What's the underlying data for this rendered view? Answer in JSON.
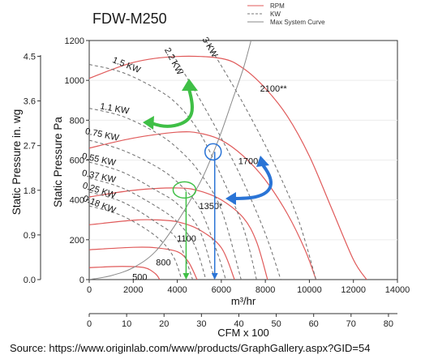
{
  "chart_data": {
    "type": "line",
    "title": "FDW-M250",
    "xlabel": "m³/hr",
    "xlabel_secondary": "CFM x 100",
    "ylabel": "Static Pressure Pa",
    "ylabel_secondary": "Static Pressure in. wg",
    "xlim": [
      0,
      14000
    ],
    "ylim": [
      0,
      1200
    ],
    "x_ticks": [
      "0",
      "2000",
      "4000",
      "6000",
      "8000",
      "10000",
      "12000",
      "14000"
    ],
    "y_ticks": [
      "0",
      "200",
      "400",
      "600",
      "800",
      "1000",
      "1200"
    ],
    "x2_ticks": [
      "0",
      "10",
      "20",
      "30",
      "40",
      "50",
      "60",
      "70",
      "80"
    ],
    "y2_ticks": [
      "0.0",
      "0.9",
      "1.8",
      "2.7",
      "3.6",
      "4.5"
    ],
    "legend": {
      "placement": "top-right",
      "entries": [
        {
          "label": "RPM",
          "color": "#e05a5a",
          "style": "solid"
        },
        {
          "label": "KW",
          "color": "#777777",
          "style": "dashed"
        },
        {
          "label": "Max System Curve",
          "color": "#888888",
          "style": "solid"
        }
      ]
    },
    "series": [
      {
        "name": "2100",
        "label": "2100**",
        "kind": "rpm",
        "points": [
          [
            0,
            1010
          ],
          [
            2000,
            1090
          ],
          [
            4000,
            1120
          ],
          [
            6000,
            1110
          ],
          [
            7000,
            1060
          ],
          [
            8000,
            960
          ],
          [
            9000,
            820
          ],
          [
            10000,
            620
          ],
          [
            11000,
            360
          ],
          [
            12000,
            100
          ],
          [
            12600,
            0
          ]
        ]
      },
      {
        "name": "1700",
        "label": "1700",
        "kind": "rpm",
        "points": [
          [
            0,
            660
          ],
          [
            2000,
            710
          ],
          [
            4000,
            740
          ],
          [
            5000,
            735
          ],
          [
            6000,
            700
          ],
          [
            7000,
            620
          ],
          [
            8000,
            500
          ],
          [
            9000,
            330
          ],
          [
            9800,
            150
          ],
          [
            10300,
            0
          ]
        ]
      },
      {
        "name": "1350",
        "label": "1350*",
        "kind": "rpm",
        "points": [
          [
            0,
            415
          ],
          [
            2000,
            448
          ],
          [
            4000,
            460
          ],
          [
            5000,
            445
          ],
          [
            6000,
            400
          ],
          [
            7000,
            310
          ],
          [
            7600,
            190
          ],
          [
            8100,
            0
          ]
        ]
      },
      {
        "name": "1100",
        "label": "1100",
        "kind": "rpm",
        "points": [
          [
            0,
            275
          ],
          [
            2000,
            298
          ],
          [
            3000,
            300
          ],
          [
            4000,
            290
          ],
          [
            5000,
            250
          ],
          [
            6000,
            160
          ],
          [
            6600,
            0
          ]
        ]
      },
      {
        "name": "800",
        "label": "800",
        "kind": "rpm",
        "points": [
          [
            0,
            150
          ],
          [
            2000,
            162
          ],
          [
            3000,
            160
          ],
          [
            4000,
            140
          ],
          [
            4500,
            90
          ],
          [
            4900,
            0
          ]
        ]
      },
      {
        "name": "500",
        "label": "500",
        "kind": "rpm",
        "points": [
          [
            0,
            60
          ],
          [
            1500,
            66
          ],
          [
            2500,
            60
          ],
          [
            3000,
            30
          ],
          [
            3200,
            0
          ]
        ]
      },
      {
        "name": "3 KW",
        "label": "3 KW",
        "kind": "kw",
        "points": [
          [
            5300,
            1200
          ],
          [
            6500,
            980
          ],
          [
            7500,
            780
          ],
          [
            8500,
            560
          ],
          [
            9500,
            300
          ],
          [
            10300,
            0
          ]
        ]
      },
      {
        "name": "2.2 KW",
        "label": "2.2 KW",
        "kind": "kw",
        "points": [
          [
            3800,
            1130
          ],
          [
            5000,
            910
          ],
          [
            6000,
            710
          ],
          [
            7000,
            490
          ],
          [
            8000,
            230
          ],
          [
            8700,
            0
          ]
        ]
      },
      {
        "name": "1.5 KW",
        "label": "1.5 KW",
        "kind": "kw",
        "points": [
          [
            0,
            1080
          ],
          [
            1500,
            1040
          ],
          [
            3000,
            960
          ],
          [
            4000,
            880
          ],
          [
            5000,
            740
          ],
          [
            6000,
            520
          ],
          [
            7000,
            260
          ],
          [
            7600,
            0
          ]
        ]
      },
      {
        "name": "1.1 KW",
        "label": "1.1 KW",
        "kind": "kw",
        "points": [
          [
            0,
            860
          ],
          [
            1500,
            820
          ],
          [
            3000,
            740
          ],
          [
            4000,
            660
          ],
          [
            5000,
            540
          ],
          [
            6000,
            350
          ],
          [
            6900,
            0
          ]
        ]
      },
      {
        "name": "0.75 KW",
        "label": "0.75 KW",
        "kind": "kw",
        "points": [
          [
            0,
            700
          ],
          [
            1500,
            650
          ],
          [
            3000,
            570
          ],
          [
            4000,
            490
          ],
          [
            5000,
            360
          ],
          [
            5800,
            140
          ],
          [
            6200,
            0
          ]
        ]
      },
      {
        "name": "0.55 KW",
        "label": "0.55 KW",
        "kind": "kw",
        "points": [
          [
            0,
            590
          ],
          [
            1500,
            540
          ],
          [
            3000,
            450
          ],
          [
            4000,
            380
          ],
          [
            5000,
            250
          ],
          [
            5700,
            0
          ]
        ]
      },
      {
        "name": "0.37 KW",
        "label": "0.37 KW",
        "kind": "kw",
        "points": [
          [
            0,
            510
          ],
          [
            1500,
            460
          ],
          [
            3000,
            370
          ],
          [
            4000,
            290
          ],
          [
            4800,
            170
          ],
          [
            5300,
            0
          ]
        ]
      },
      {
        "name": "0.25 KW",
        "label": "0.25 KW",
        "kind": "kw",
        "points": [
          [
            0,
            440
          ],
          [
            1500,
            390
          ],
          [
            3000,
            290
          ],
          [
            4000,
            200
          ],
          [
            4700,
            0
          ]
        ]
      },
      {
        "name": "0.18 KW",
        "label": "0.18 KW",
        "kind": "kw",
        "points": [
          [
            0,
            370
          ],
          [
            1500,
            320
          ],
          [
            3000,
            220
          ],
          [
            3800,
            120
          ],
          [
            4200,
            0
          ]
        ]
      },
      {
        "name": "Max System Curve",
        "label": "",
        "kind": "system",
        "points": [
          [
            0,
            0
          ],
          [
            1000,
            20
          ],
          [
            2000,
            60
          ],
          [
            3000,
            140
          ],
          [
            4000,
            290
          ],
          [
            5000,
            480
          ],
          [
            5500,
            600
          ],
          [
            6000,
            740
          ],
          [
            6500,
            900
          ],
          [
            7000,
            1060
          ],
          [
            7350,
            1200
          ]
        ]
      }
    ],
    "annotations": {
      "operating_points": [
        {
          "x": 4400,
          "y": 450,
          "color": "#3fbf46"
        },
        {
          "x": 5700,
          "y": 690,
          "color": "#2a74d6"
        }
      ],
      "arrows": [
        {
          "color": "#3fbf46",
          "from": [
            4400,
            450
          ],
          "to": [
            4400,
            0
          ]
        },
        {
          "color": "#2a74d6",
          "from": [
            5700,
            690
          ],
          "to": [
            5700,
            0
          ]
        }
      ]
    }
  },
  "footer": {
    "source": "Source: https://www.originlab.com/www/products/GraphGallery.aspx?GID=54"
  }
}
